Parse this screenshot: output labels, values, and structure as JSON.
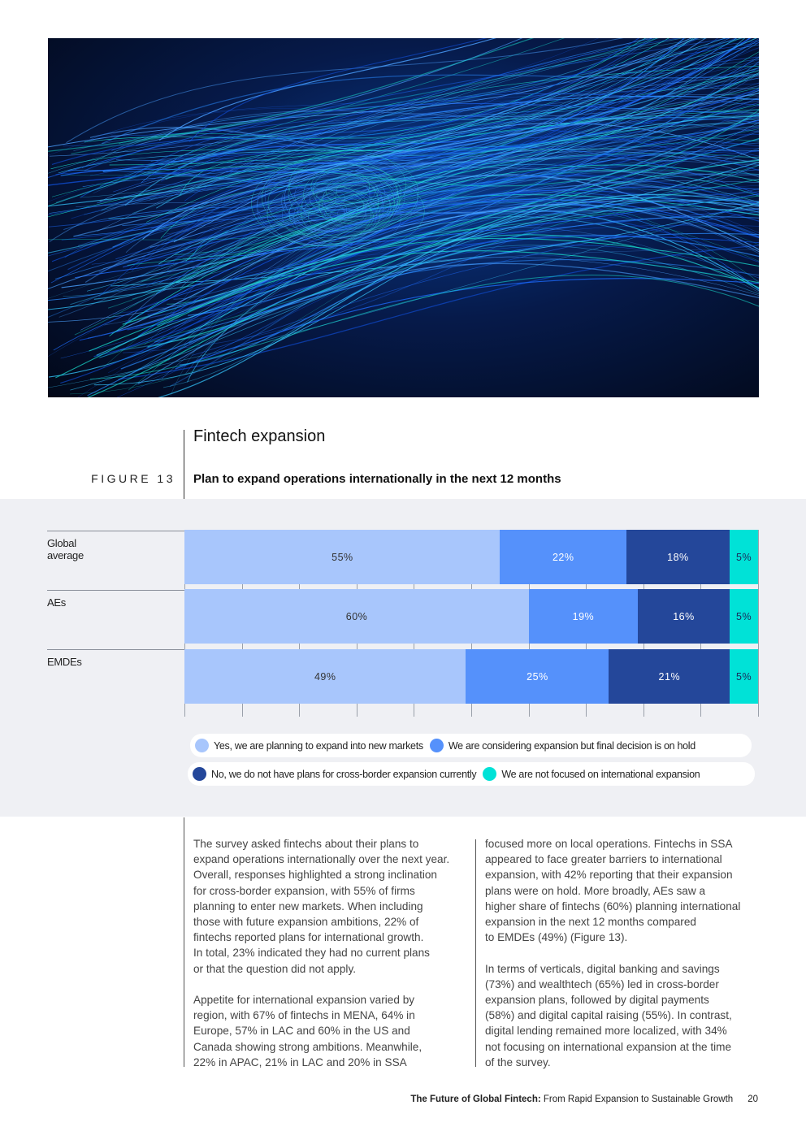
{
  "section_title": "Fintech expansion",
  "figure": {
    "label": "FIGURE 13",
    "title": "Plan to expand operations internationally in the next 12 months"
  },
  "colors": {
    "yes": "#a8c6fc",
    "considering": "#5591fb",
    "no": "#24479a",
    "not_focused": "#00e2d7",
    "band": "#eff0f4"
  },
  "chart_data": {
    "type": "bar",
    "orientation": "horizontal",
    "stacked": true,
    "categories": [
      "Global average",
      "AEs",
      "EMDEs"
    ],
    "xlim": [
      0,
      100
    ],
    "grid": true,
    "legend_position": "bottom",
    "series": [
      {
        "name": "Yes, we are planning to expand into new markets",
        "values": [
          55,
          60,
          49
        ],
        "labels": [
          "55%",
          "60%",
          "49%"
        ],
        "color": "#a8c6fc"
      },
      {
        "name": "We are considering expansion but final decision is on hold",
        "values": [
          22,
          19,
          25
        ],
        "labels": [
          "22%",
          "19%",
          "25%"
        ],
        "color": "#5591fb"
      },
      {
        "name": "No, we do not have plans for cross-border expansion currently",
        "values": [
          18,
          16,
          21
        ],
        "labels": [
          "18%",
          "16%",
          "21%"
        ],
        "color": "#24479a"
      },
      {
        "name": "We are not focused on international expansion",
        "values": [
          5,
          5,
          5
        ],
        "labels": [
          "5%",
          "5%",
          "5%"
        ],
        "color": "#00e2d7"
      }
    ]
  },
  "body": {
    "left": [
      [
        "The survey asked fintechs about their plans to",
        "expand operations internationally over the next year.",
        "Overall, responses highlighted a strong inclination",
        "for cross-border expansion, with 55% of firms",
        "planning to enter new markets. When including",
        "those with future expansion ambitions, 22% of",
        "fintechs reported plans for international growth.",
        "In total, 23% indicated they had no current plans",
        "or that the question did not apply."
      ],
      [
        "Appetite for international expansion varied by",
        "region, with 67% of fintechs in MENA, 64% in",
        "Europe, 57% in LAC and 60% in the US and",
        "Canada showing strong ambitions. Meanwhile,",
        "22% in APAC, 21% in LAC and 20% in SSA"
      ]
    ],
    "right": [
      [
        "focused more on local operations. Fintechs in SSA",
        "appeared to face greater barriers to international",
        "expansion, with 42% reporting that their expansion",
        "plans were on hold. More broadly, AEs saw a",
        "higher share of fintechs (60%) planning international",
        "expansion in the next 12 months compared",
        "to EMDEs (49%) (Figure 13)."
      ],
      [
        "In terms of verticals, digital banking and savings",
        "(73%) and wealthtech (65%) led in cross-border",
        "expansion plans, followed by digital payments",
        "(58%) and digital capital raising (55%). In contrast,",
        "digital lending remained more localized, with 34%",
        "not focusing on international expansion at the time",
        "of the survey."
      ]
    ]
  },
  "footer": {
    "title_bold": "The Future of Global Fintech:",
    "title_rest": " From Rapid Expansion to Sustainable Growth",
    "page": "20"
  }
}
